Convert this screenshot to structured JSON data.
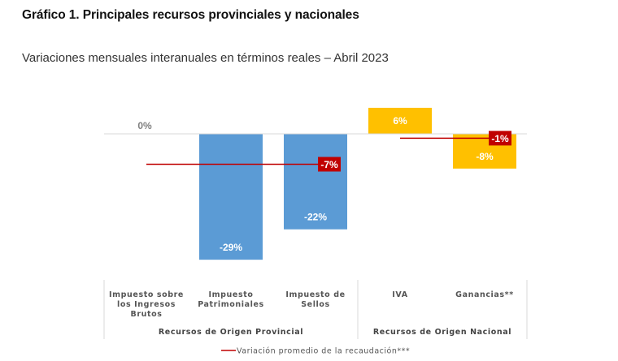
{
  "title": "Gráfico 1. Principales recursos provinciales y nacionales",
  "subtitle": "Variaciones mensuales interanuales en términos reales – Abril 2023",
  "colors": {
    "provincial": "#5b9bd5",
    "nacional": "#ffc000",
    "average_line": "#c00000",
    "average_label_bg": "#c00000",
    "zero_line": "#d9d9d9"
  },
  "chart_data": {
    "type": "bar",
    "title": "Gráfico 1. Principales recursos provinciales y nacionales",
    "subtitle": "Variaciones mensuales interanuales en términos reales – Abril 2023",
    "xlabel": "",
    "ylabel": "",
    "unit": "%",
    "ylim": [
      -29,
      6
    ],
    "grid": false,
    "categories": [
      [
        "Impuesto sobre",
        "los Ingresos",
        "Brutos"
      ],
      [
        "Impuesto",
        "Patrimoniales"
      ],
      [
        "Impuesto de",
        "Sellos"
      ],
      [
        "IVA"
      ],
      [
        "Ganancias**"
      ]
    ],
    "values": [
      0,
      -29,
      -22,
      6,
      -8
    ],
    "data_labels": [
      "0%",
      "-29%",
      "-22%",
      "6%",
      "-8%"
    ],
    "bar_groups": [
      "provincial",
      "provincial",
      "provincial",
      "nacional",
      "nacional"
    ],
    "groups": [
      {
        "name": "Recursos de Origen Provincial",
        "key": "provincial",
        "start": 0,
        "end": 2,
        "average": -7,
        "average_label": "-7%"
      },
      {
        "name": "Recursos de Origen Nacional",
        "key": "nacional",
        "start": 3,
        "end": 4,
        "average": -1,
        "average_label": "-1%"
      }
    ],
    "legend": {
      "position": "bottom",
      "entries": [
        {
          "name": "Variación promedio de la recaudación***",
          "type": "line"
        }
      ]
    }
  }
}
